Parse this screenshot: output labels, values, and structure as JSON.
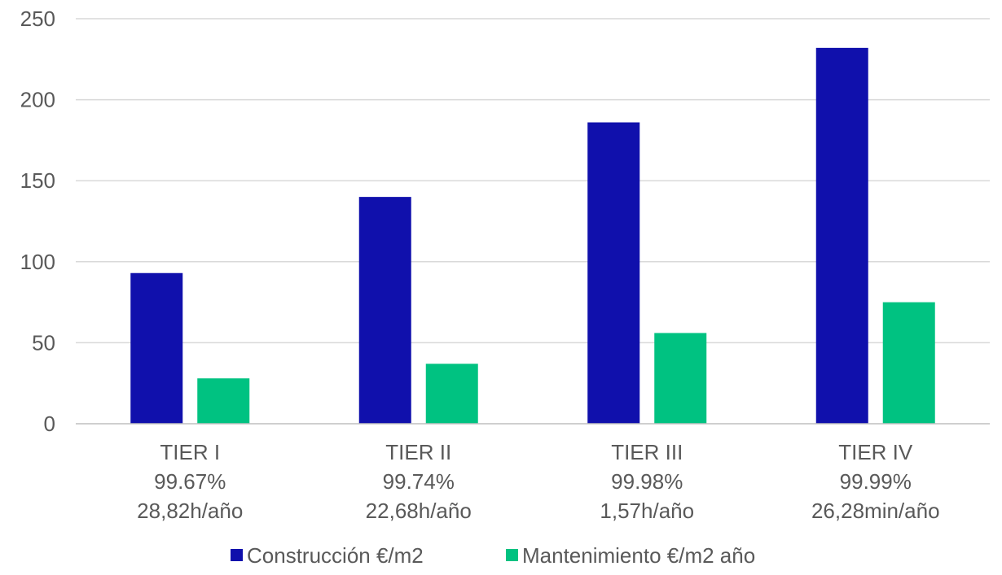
{
  "chart_data": {
    "type": "bar",
    "categories": [
      [
        "TIER I",
        "99.67%",
        "28,82h/año"
      ],
      [
        "TIER II",
        "99.74%",
        "22,68h/año"
      ],
      [
        "TIER III",
        "99.98%",
        "1,57h/año"
      ],
      [
        "TIER IV",
        "99.99%",
        "26,28min/año"
      ]
    ],
    "series": [
      {
        "name": "Construcción €/m2",
        "values": [
          93,
          140,
          186,
          232
        ],
        "color": "#1010ac"
      },
      {
        "name": "Mantenimiento €/m2 año",
        "values": [
          28,
          37,
          56,
          75
        ],
        "color": "#00c281"
      }
    ],
    "ylim": [
      0,
      250
    ],
    "yticks": [
      0,
      50,
      100,
      150,
      200,
      250
    ],
    "grid": true,
    "legend": "bottom",
    "title": "",
    "xlabel": "",
    "ylabel": ""
  }
}
